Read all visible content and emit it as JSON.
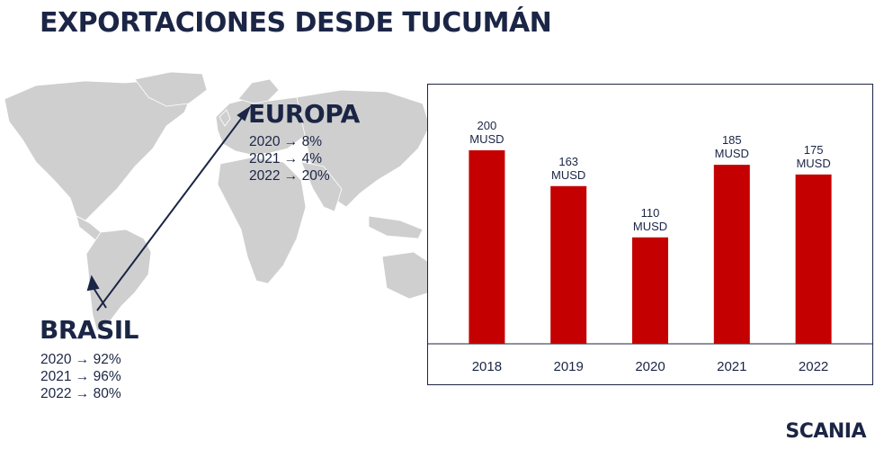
{
  "title": "EXPORTACIONES DESDE TUCUMÁN",
  "europa": {
    "name": "EUROPA",
    "stats": [
      "2020 → 8%",
      "2021 → 4%",
      "2022 → 20%"
    ]
  },
  "brasil": {
    "name": "BRASIL",
    "stats": [
      "2020 → 92%",
      "2021 → 96%",
      "2022 → 80%"
    ]
  },
  "logo": "SCANIA",
  "colors": {
    "bar": "#c40000",
    "text": "#1b2545",
    "map": "#cfcfcf"
  },
  "chart_data": {
    "type": "bar",
    "categories": [
      "2018",
      "2019",
      "2020",
      "2021",
      "2022"
    ],
    "values": [
      200,
      163,
      110,
      185,
      175
    ],
    "data_labels": [
      [
        "200",
        "MUSD"
      ],
      [
        "163",
        "MUSD"
      ],
      [
        "110",
        "MUSD"
      ],
      [
        "185",
        "MUSD"
      ],
      [
        "175",
        "MUSD"
      ]
    ],
    "ylim": [
      0,
      240
    ],
    "grid": false,
    "legend": "none"
  }
}
